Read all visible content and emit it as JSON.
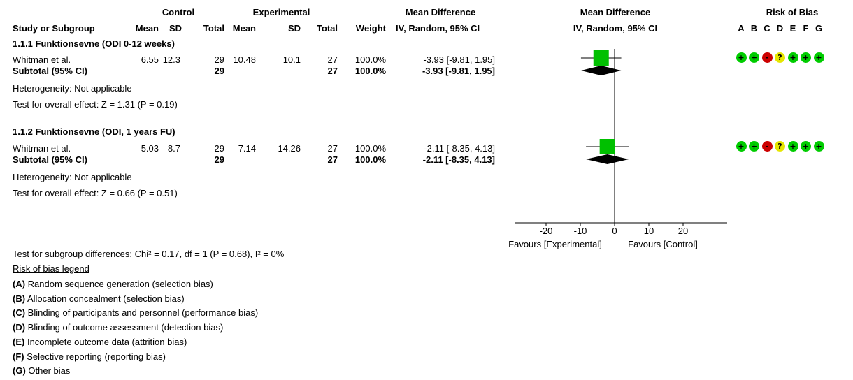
{
  "header": {
    "control": "Control",
    "experimental": "Experimental",
    "mean_difference": "Mean Difference",
    "mean_difference_plot": "Mean Difference",
    "risk_of_bias": "Risk of Bias",
    "study_or_subgroup": "Study or Subgroup",
    "mean": "Mean",
    "sd": "SD",
    "total": "Total",
    "weight": "Weight",
    "method": "IV, Random, 95% CI",
    "method_plot": "IV, Random, 95% CI",
    "rob_letters": [
      "A",
      "B",
      "C",
      "D",
      "E",
      "F",
      "G"
    ]
  },
  "subgroups": [
    {
      "title": "1.1.1 Funktionsevne (ODI 0-12 weeks)",
      "study": {
        "name": "Whitman et al.",
        "c_mean": "6.55",
        "c_sd": "12.3",
        "c_total": "29",
        "e_mean": "10.48",
        "e_sd": "10.1",
        "e_total": "27",
        "weight": "100.0%",
        "ci": "-3.93 [-9.81, 1.95]"
      },
      "subtotal": {
        "label": "Subtotal (95% CI)",
        "c_total": "29",
        "e_total": "27",
        "weight": "100.0%",
        "ci": "-3.93 [-9.81, 1.95]"
      },
      "heterogeneity": "Heterogeneity: Not applicable",
      "overall_effect": "Test for overall effect: Z = 1.31 (P = 0.19)",
      "rob": [
        "+",
        "+",
        "-",
        "?",
        "+",
        "+",
        "+"
      ]
    },
    {
      "title": "1.1.2 Funktionsevne (ODI, 1 years FU)",
      "study": {
        "name": "Whitman et al.",
        "c_mean": "5.03",
        "c_sd": "8.7",
        "c_total": "29",
        "e_mean": "7.14",
        "e_sd": "14.26",
        "e_total": "27",
        "weight": "100.0%",
        "ci": "-2.11 [-8.35, 4.13]"
      },
      "subtotal": {
        "label": "Subtotal (95% CI)",
        "c_total": "29",
        "e_total": "27",
        "weight": "100.0%",
        "ci": "-2.11 [-8.35, 4.13]"
      },
      "heterogeneity": "Heterogeneity: Not applicable",
      "overall_effect": "Test for overall effect: Z = 0.66 (P = 0.51)",
      "rob": [
        "+",
        "+",
        "-",
        "?",
        "+",
        "+",
        "+"
      ]
    }
  ],
  "subgroup_differences": "Test for subgroup differences: Chi² = 0.17, df = 1 (P = 0.68), I² = 0%",
  "legend": {
    "title": "Risk of bias legend",
    "items": [
      {
        "letter": "(A)",
        "text": " Random sequence generation (selection bias)"
      },
      {
        "letter": "(B)",
        "text": " Allocation concealment (selection bias)"
      },
      {
        "letter": "(C)",
        "text": " Blinding of participants and personnel (performance bias)"
      },
      {
        "letter": "(D)",
        "text": " Blinding of outcome assessment (detection bias)"
      },
      {
        "letter": "(E)",
        "text": " Incomplete outcome data (attrition bias)"
      },
      {
        "letter": "(F)",
        "text": " Selective reporting (reporting bias)"
      },
      {
        "letter": "(G)",
        "text": " Other bias"
      }
    ]
  },
  "colors": {
    "square": "#00c000",
    "diamond": "#000000",
    "rob_low": "#00cc00",
    "rob_high": "#cc0000",
    "rob_unclear": "#e6e600"
  },
  "chart_data": {
    "type": "forest",
    "xlim": [
      -30,
      30
    ],
    "ticks": [
      "-20",
      "-10",
      "0",
      "10",
      "20"
    ],
    "tick_values": [
      -20,
      -10,
      0,
      10,
      20
    ],
    "favours_left": "Favours [Experimental]",
    "favours_right": "Favours [Control]",
    "studies": [
      {
        "subgroup": 0,
        "md": -3.93,
        "lo": -9.81,
        "hi": 1.95,
        "weight": 100.0
      },
      {
        "subgroup": 1,
        "md": -2.11,
        "lo": -8.35,
        "hi": 4.13,
        "weight": 100.0
      }
    ],
    "subtotals": [
      {
        "subgroup": 0,
        "md": -3.93,
        "lo": -9.81,
        "hi": 1.95
      },
      {
        "subgroup": 1,
        "md": -2.11,
        "lo": -8.35,
        "hi": 4.13
      }
    ]
  }
}
